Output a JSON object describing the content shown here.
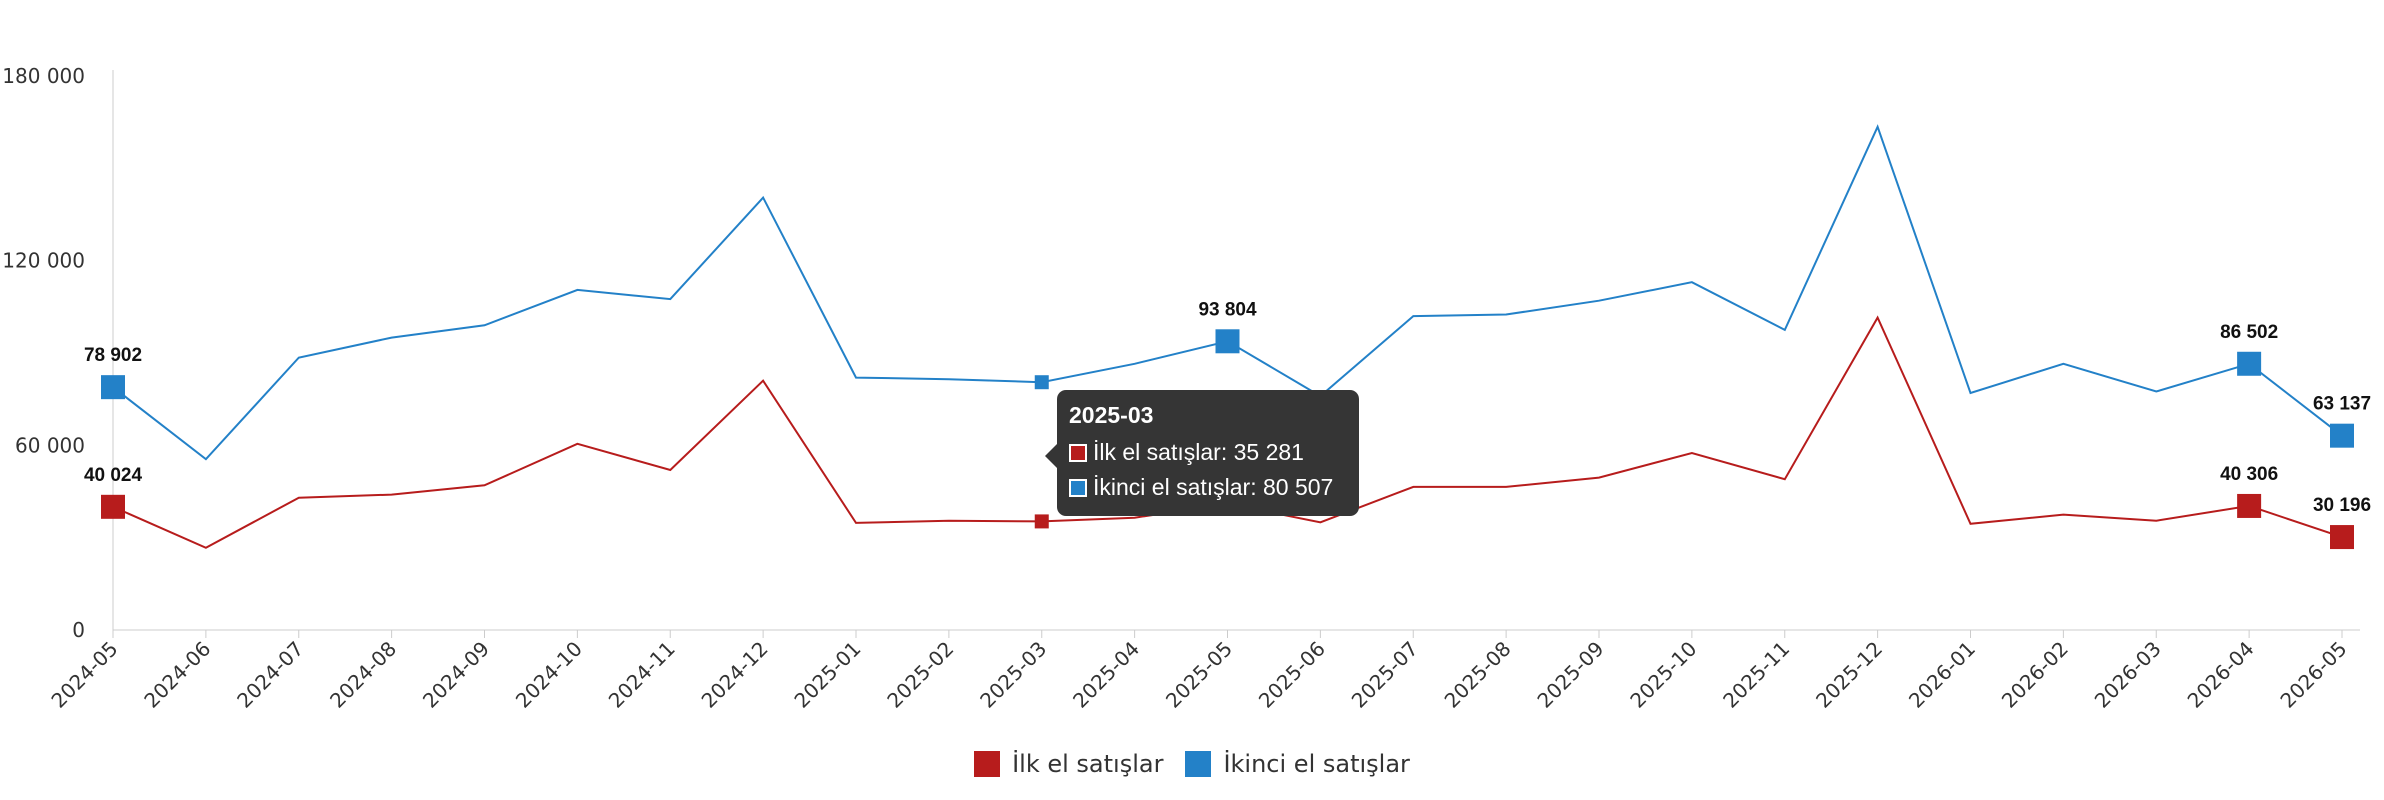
{
  "chart_data": {
    "type": "line",
    "x": [
      "2024-05",
      "2024-06",
      "2024-07",
      "2024-08",
      "2024-09",
      "2024-10",
      "2024-11",
      "2024-12",
      "2025-01",
      "2025-02",
      "2025-03",
      "2025-04",
      "2025-05",
      "2025-06",
      "2025-07",
      "2025-08",
      "2025-09",
      "2025-10",
      "2025-11",
      "2025-12",
      "2026-01",
      "2026-02",
      "2026-03",
      "2026-04",
      "2026-05"
    ],
    "ylim": [
      0,
      180000
    ],
    "yticks": [
      0,
      60000,
      120000,
      180000
    ],
    "ytick_labels": [
      "0",
      "60 000",
      "120 000",
      "180 000"
    ],
    "series": [
      {
        "name": "İlk el satışlar",
        "color": "#b71c1c",
        "values": [
          40024,
          26700,
          43000,
          44000,
          47000,
          60500,
          52000,
          81000,
          34800,
          35500,
          35281,
          36500,
          41000,
          35000,
          46500,
          46500,
          49500,
          57500,
          49000,
          101500,
          34500,
          37500,
          35500,
          40306,
          30196
        ]
      },
      {
        "name": "İkinci el satışlar",
        "color": "#2381c8",
        "values": [
          78902,
          55500,
          88500,
          95000,
          99000,
          110500,
          107500,
          140500,
          82000,
          81500,
          80507,
          86500,
          93804,
          76000,
          102000,
          102500,
          107000,
          113000,
          97500,
          163500,
          77000,
          86500,
          77500,
          86502,
          63137
        ]
      }
    ],
    "data_labels": [
      {
        "series": 0,
        "index": 0,
        "text": "40 024"
      },
      {
        "series": 0,
        "index": 12,
        "text": "41 000"
      },
      {
        "series": 0,
        "index": 23,
        "text": "40 306"
      },
      {
        "series": 0,
        "index": 24,
        "text": "30 196"
      },
      {
        "series": 1,
        "index": 0,
        "text": "78 902"
      },
      {
        "series": 1,
        "index": 12,
        "text": "93 804"
      },
      {
        "series": 1,
        "index": 23,
        "text": "86 502"
      },
      {
        "series": 1,
        "index": 24,
        "text": "63 137"
      }
    ],
    "highlight_markers": [
      0,
      12,
      23,
      24
    ],
    "hover_index": 10,
    "legend_position": "bottom-center"
  },
  "tooltip": {
    "title": "2025-03",
    "rows": [
      {
        "label": "İlk el satışlar: 35 281",
        "color": "#b71c1c"
      },
      {
        "label": "İkinci el satışlar: 80 507",
        "color": "#2381c8"
      }
    ]
  },
  "legend": {
    "items": [
      {
        "label": "İlk el satışlar",
        "color": "#b71c1c"
      },
      {
        "label": "İkinci el satışlar",
        "color": "#2381c8"
      }
    ]
  }
}
